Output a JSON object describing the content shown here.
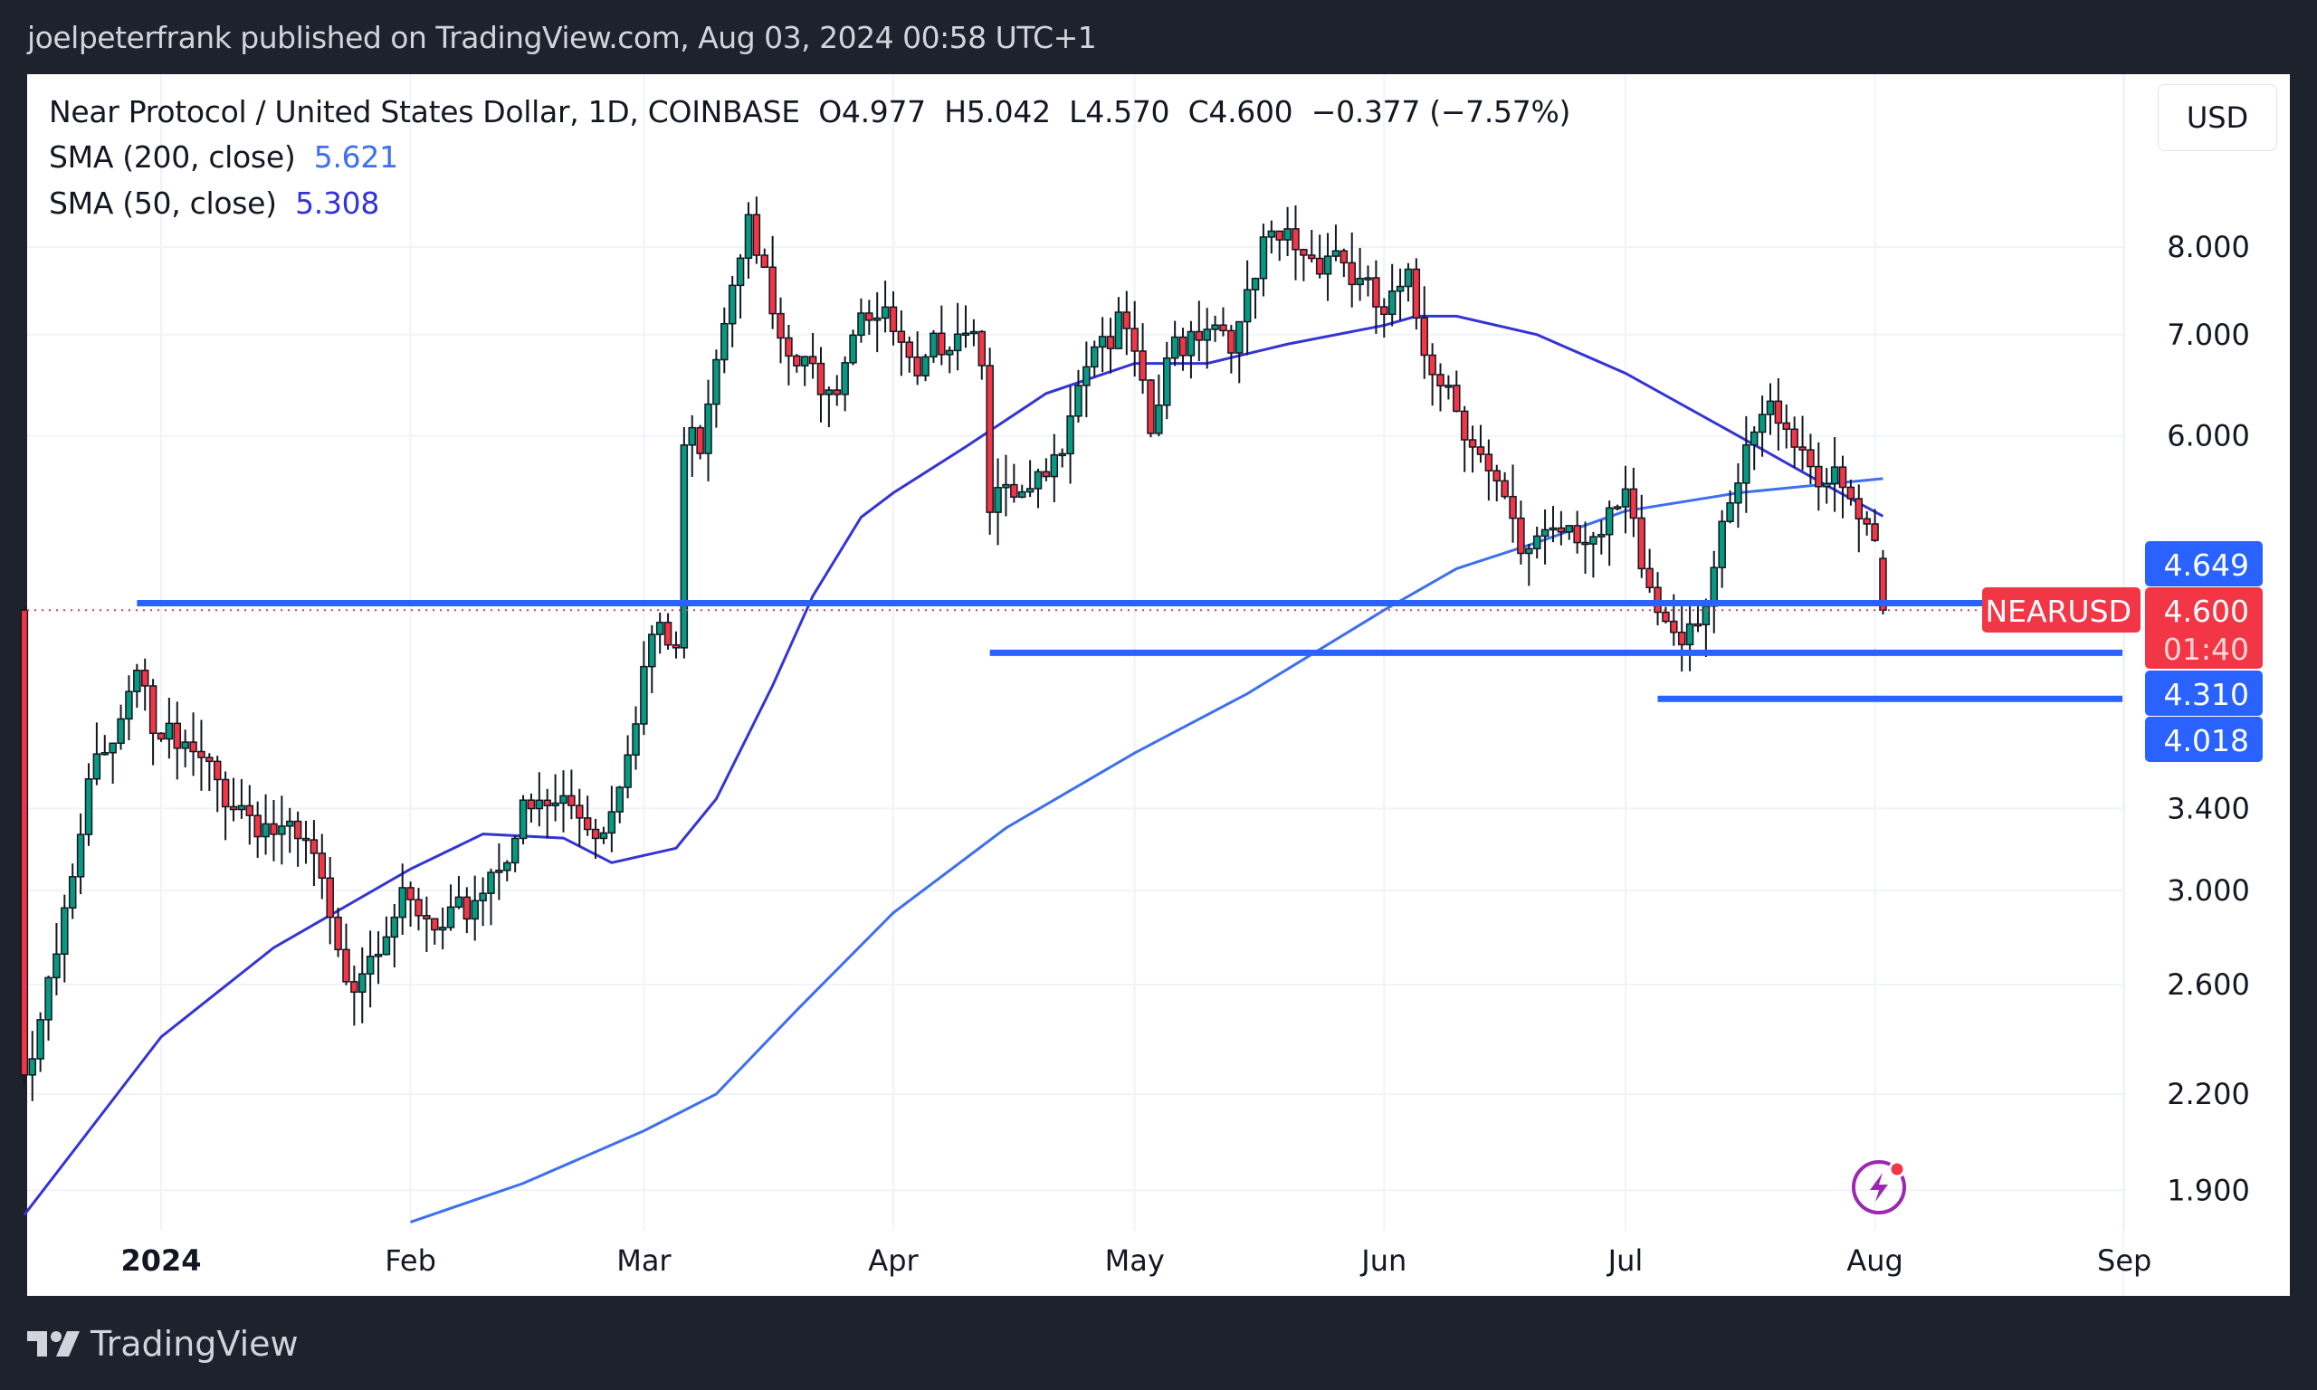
{
  "header": {
    "published": "joelpeterfrank published on TradingView.com, Aug 03, 2024 00:58 UTC+1"
  },
  "legend": {
    "symbol_line": "Near Protocol / United States Dollar, 1D, COINBASE",
    "open": "O4.977",
    "high": "H5.042",
    "low": "L4.570",
    "close": "C4.600",
    "change": "−0.377 (−7.57%)",
    "sma200_label": "SMA (200, close)",
    "sma200_value": "5.621",
    "sma50_label": "SMA (50, close)",
    "sma50_value": "5.308"
  },
  "currency_button": "USD",
  "footer": {
    "brand": "TradingView"
  },
  "colors": {
    "up": "#089981",
    "down": "#f23645",
    "sma200": "#3d6ff0",
    "sma50": "#3434d6",
    "hline": "#2962ff",
    "price_tag": "#f23645"
  },
  "icons": {
    "flash": "lightning-icon",
    "logo": "tradingview-logo-icon"
  },
  "chart_data": {
    "type": "candlestick",
    "scale": "log",
    "grid": true,
    "ylim": [
      1.75,
      9.3
    ],
    "xlim": [
      "2023-12-13",
      "2024-09-05"
    ],
    "x_ticks": [
      {
        "date": "2024-01-01",
        "label": "2024"
      },
      {
        "date": "2024-02-01",
        "label": "Feb"
      },
      {
        "date": "2024-03-01",
        "label": "Mar"
      },
      {
        "date": "2024-04-01",
        "label": "Apr"
      },
      {
        "date": "2024-05-01",
        "label": "May"
      },
      {
        "date": "2024-06-01",
        "label": "Jun"
      },
      {
        "date": "2024-07-01",
        "label": "Jul"
      },
      {
        "date": "2024-08-01",
        "label": "Aug"
      },
      {
        "date": "2024-09-01",
        "label": "Sep"
      }
    ],
    "y_ticks": [
      {
        "value": 8.0,
        "label": "8.000"
      },
      {
        "value": 7.0,
        "label": "7.000"
      },
      {
        "value": 6.0,
        "label": "6.000"
      },
      {
        "value": 3.4,
        "label": "3.400"
      },
      {
        "value": 3.0,
        "label": "3.000"
      },
      {
        "value": 2.6,
        "label": "2.600"
      },
      {
        "value": 2.2,
        "label": "2.200"
      },
      {
        "value": 1.9,
        "label": "1.900"
      }
    ],
    "close_points": [
      [
        "2023-12-15",
        2.3
      ],
      [
        "2023-12-20",
        2.84
      ],
      [
        "2023-12-23",
        3.5
      ],
      [
        "2023-12-27",
        3.96
      ],
      [
        "2023-12-29",
        4.28
      ],
      [
        "2024-01-01",
        3.78
      ],
      [
        "2024-01-05",
        3.66
      ],
      [
        "2024-01-10",
        3.45
      ],
      [
        "2024-01-15",
        3.29
      ],
      [
        "2024-01-20",
        3.14
      ],
      [
        "2024-01-23",
        2.68
      ],
      [
        "2024-01-25",
        2.65
      ],
      [
        "2024-01-30",
        2.94
      ],
      [
        "2024-02-05",
        2.78
      ],
      [
        "2024-02-10",
        3.03
      ],
      [
        "2024-02-15",
        3.35
      ],
      [
        "2024-02-20",
        3.43
      ],
      [
        "2024-02-25",
        3.29
      ],
      [
        "2024-02-28",
        3.78
      ],
      [
        "2024-03-02",
        4.42
      ],
      [
        "2024-03-05",
        4.33
      ],
      [
        "2024-03-06",
        5.9
      ],
      [
        "2024-03-08",
        6.0
      ],
      [
        "2024-03-10",
        6.9
      ],
      [
        "2024-03-13",
        8.1
      ],
      [
        "2024-03-14",
        8.7
      ],
      [
        "2024-03-16",
        7.6
      ],
      [
        "2024-03-18",
        6.8
      ],
      [
        "2024-03-21",
        6.6
      ],
      [
        "2024-03-25",
        6.6
      ],
      [
        "2024-03-28",
        7.4
      ],
      [
        "2024-04-01",
        7.0
      ],
      [
        "2024-04-04",
        6.4
      ],
      [
        "2024-04-07",
        7.0
      ],
      [
        "2024-04-10",
        7.2
      ],
      [
        "2024-04-12",
        6.9
      ],
      [
        "2024-04-13",
        5.5
      ],
      [
        "2024-04-15",
        5.4
      ],
      [
        "2024-04-18",
        5.4
      ],
      [
        "2024-04-21",
        5.7
      ],
      [
        "2024-04-23",
        6.4
      ],
      [
        "2024-04-26",
        7.0
      ],
      [
        "2024-04-30",
        7.0
      ],
      [
        "2024-05-03",
        6.0
      ],
      [
        "2024-05-06",
        6.9
      ],
      [
        "2024-05-10",
        7.2
      ],
      [
        "2024-05-14",
        7.0
      ],
      [
        "2024-05-17",
        7.9
      ],
      [
        "2024-05-20",
        8.1
      ],
      [
        "2024-05-23",
        7.9
      ],
      [
        "2024-05-26",
        8.0
      ],
      [
        "2024-05-29",
        7.5
      ],
      [
        "2024-06-01",
        7.2
      ],
      [
        "2024-06-04",
        7.5
      ],
      [
        "2024-06-06",
        6.9
      ],
      [
        "2024-06-09",
        6.5
      ],
      [
        "2024-06-12",
        6.0
      ],
      [
        "2024-06-14",
        5.6
      ],
      [
        "2024-06-17",
        5.2
      ],
      [
        "2024-06-18",
        4.9
      ],
      [
        "2024-06-20",
        5.2
      ],
      [
        "2024-06-24",
        5.3
      ],
      [
        "2024-06-28",
        5.1
      ],
      [
        "2024-07-01",
        5.4
      ],
      [
        "2024-07-03",
        4.9
      ],
      [
        "2024-07-05",
        4.6
      ],
      [
        "2024-07-08",
        4.5
      ],
      [
        "2024-07-11",
        4.7
      ],
      [
        "2024-07-14",
        5.3
      ],
      [
        "2024-07-17",
        6.0
      ],
      [
        "2024-07-20",
        6.3
      ],
      [
        "2024-07-23",
        5.9
      ],
      [
        "2024-07-26",
        5.6
      ],
      [
        "2024-07-29",
        5.4
      ],
      [
        "2024-07-31",
        5.1
      ],
      [
        "2024-08-01",
        4.977
      ],
      [
        "2024-08-02",
        4.6
      ]
    ],
    "last_candle": {
      "date": "2024-08-02",
      "open": 4.977,
      "high": 5.042,
      "low": 4.57,
      "close": 4.6
    },
    "series": [
      {
        "name": "SMA (200, close)",
        "points": [
          [
            "2024-02-01",
            1.81
          ],
          [
            "2024-02-15",
            1.92
          ],
          [
            "2024-03-01",
            2.08
          ],
          [
            "2024-03-10",
            2.2
          ],
          [
            "2024-03-20",
            2.5
          ],
          [
            "2024-04-01",
            2.9
          ],
          [
            "2024-04-15",
            3.3
          ],
          [
            "2024-05-01",
            3.7
          ],
          [
            "2024-05-15",
            4.05
          ],
          [
            "2024-06-01",
            4.6
          ],
          [
            "2024-06-10",
            4.9
          ],
          [
            "2024-06-20",
            5.1
          ],
          [
            "2024-07-01",
            5.35
          ],
          [
            "2024-07-15",
            5.5
          ],
          [
            "2024-08-02",
            5.621
          ]
        ]
      },
      {
        "name": "SMA (50, close)",
        "points": [
          [
            "2023-12-15",
            1.83
          ],
          [
            "2024-01-01",
            2.4
          ],
          [
            "2024-01-15",
            2.75
          ],
          [
            "2024-02-01",
            3.1
          ],
          [
            "2024-02-10",
            3.27
          ],
          [
            "2024-02-20",
            3.25
          ],
          [
            "2024-02-26",
            3.13
          ],
          [
            "2024-03-05",
            3.2
          ],
          [
            "2024-03-10",
            3.45
          ],
          [
            "2024-03-17",
            4.1
          ],
          [
            "2024-03-22",
            4.7
          ],
          [
            "2024-03-28",
            5.3
          ],
          [
            "2024-04-01",
            5.5
          ],
          [
            "2024-04-10",
            5.9
          ],
          [
            "2024-04-20",
            6.4
          ],
          [
            "2024-05-01",
            6.7
          ],
          [
            "2024-05-10",
            6.7
          ],
          [
            "2024-05-20",
            6.9
          ],
          [
            "2024-06-01",
            7.1
          ],
          [
            "2024-06-05",
            7.2
          ],
          [
            "2024-06-10",
            7.2
          ],
          [
            "2024-06-20",
            7.0
          ],
          [
            "2024-07-01",
            6.6
          ],
          [
            "2024-07-15",
            6.0
          ],
          [
            "2024-07-25",
            5.6
          ],
          [
            "2024-08-02",
            5.308
          ]
        ]
      }
    ],
    "horizontal_lines": [
      {
        "start": "2023-12-29",
        "value": 4.649,
        "label": "4.649"
      },
      {
        "start": "2024-04-13",
        "value": 4.31,
        "label": "4.310"
      },
      {
        "start": "2024-07-05",
        "value": 4.018,
        "label": "4.018"
      }
    ],
    "current_price": {
      "symbol": "NEARUSD",
      "value": 4.6,
      "label": "4.600",
      "countdown": "01:40"
    }
  }
}
